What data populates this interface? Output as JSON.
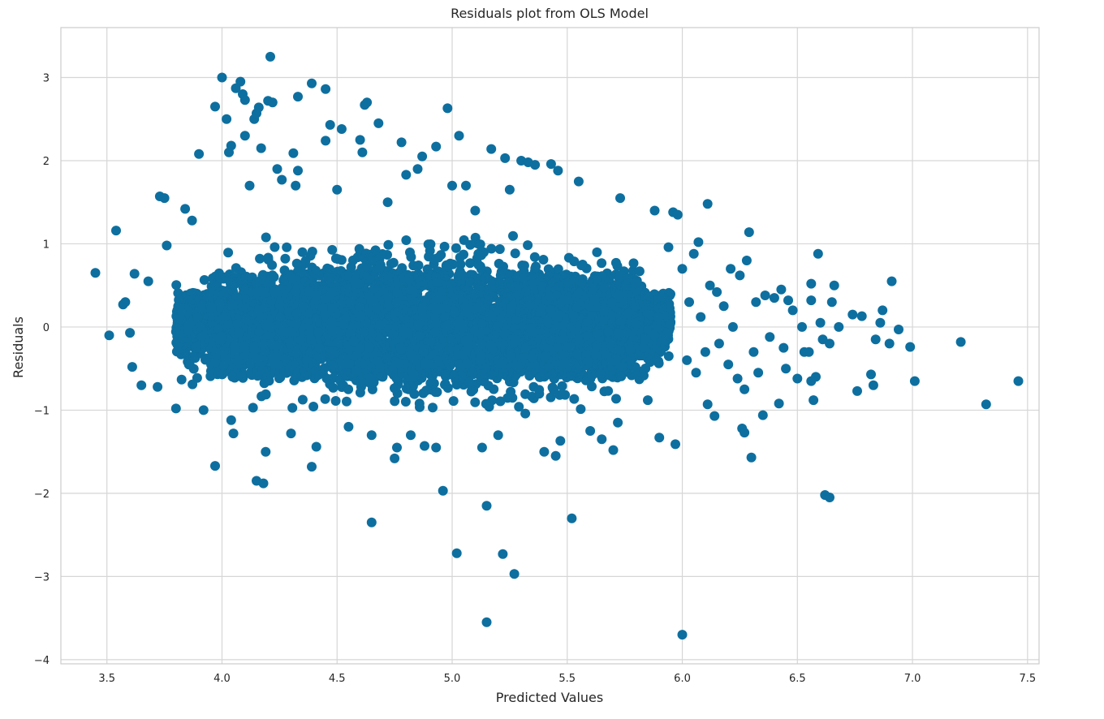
{
  "chart_data": {
    "type": "scatter",
    "title": "Residuals plot from OLS Model",
    "xlabel": "Predicted Values",
    "ylabel": "Residuals",
    "xlim": [
      3.3,
      7.55
    ],
    "ylim": [
      -4.05,
      3.6
    ],
    "xticks": [
      3.5,
      4.0,
      4.5,
      5.0,
      5.5,
      6.0,
      6.5,
      7.0,
      7.5
    ],
    "xtick_labels": [
      "3.5",
      "4.0",
      "4.5",
      "5.0",
      "5.5",
      "6.0",
      "6.5",
      "7.0",
      "7.5"
    ],
    "yticks": [
      -4,
      -3,
      -2,
      -1,
      0,
      1,
      2,
      3
    ],
    "ytick_labels": [
      "−4",
      "−3",
      "−2",
      "−1",
      "0",
      "1",
      "2",
      "3"
    ],
    "grid": true,
    "marker_color": "#0d6f9f",
    "dense_cluster": {
      "description_values": {
        "x_range": [
          3.8,
          5.95
        ],
        "y_range": [
          -0.9,
          0.95
        ]
      }
    },
    "points": [
      {
        "x": 3.45,
        "y": 0.65
      },
      {
        "x": 3.51,
        "y": -0.1
      },
      {
        "x": 3.54,
        "y": 1.16
      },
      {
        "x": 3.57,
        "y": 0.27
      },
      {
        "x": 3.58,
        "y": 0.3
      },
      {
        "x": 3.6,
        "y": -0.07
      },
      {
        "x": 3.61,
        "y": -0.48
      },
      {
        "x": 3.62,
        "y": 0.64
      },
      {
        "x": 3.65,
        "y": -0.7
      },
      {
        "x": 3.68,
        "y": 0.55
      },
      {
        "x": 3.72,
        "y": -0.72
      },
      {
        "x": 3.73,
        "y": 1.57
      },
      {
        "x": 3.75,
        "y": 1.55
      },
      {
        "x": 3.76,
        "y": 0.98
      },
      {
        "x": 3.8,
        "y": -0.98
      },
      {
        "x": 3.84,
        "y": 1.42
      },
      {
        "x": 3.87,
        "y": 1.28
      },
      {
        "x": 3.9,
        "y": 2.08
      },
      {
        "x": 3.92,
        "y": -1.0
      },
      {
        "x": 3.97,
        "y": -1.67
      },
      {
        "x": 3.97,
        "y": 2.65
      },
      {
        "x": 4.0,
        "y": 3.0
      },
      {
        "x": 4.02,
        "y": 2.5
      },
      {
        "x": 4.03,
        "y": 2.1
      },
      {
        "x": 4.04,
        "y": 2.18
      },
      {
        "x": 4.04,
        "y": -1.12
      },
      {
        "x": 4.05,
        "y": -1.28
      },
      {
        "x": 4.06,
        "y": 2.87
      },
      {
        "x": 4.08,
        "y": 2.95
      },
      {
        "x": 4.09,
        "y": 2.8
      },
      {
        "x": 4.1,
        "y": 2.3
      },
      {
        "x": 4.1,
        "y": 2.73
      },
      {
        "x": 4.12,
        "y": 1.7
      },
      {
        "x": 4.14,
        "y": 2.5
      },
      {
        "x": 4.15,
        "y": 2.57
      },
      {
        "x": 4.15,
        "y": -1.85
      },
      {
        "x": 4.16,
        "y": 2.64
      },
      {
        "x": 4.17,
        "y": 2.15
      },
      {
        "x": 4.18,
        "y": -1.88
      },
      {
        "x": 4.19,
        "y": -1.5
      },
      {
        "x": 4.2,
        "y": 2.72
      },
      {
        "x": 4.21,
        "y": 3.25
      },
      {
        "x": 4.22,
        "y": 2.7
      },
      {
        "x": 4.24,
        "y": 1.9
      },
      {
        "x": 4.26,
        "y": 1.77
      },
      {
        "x": 4.3,
        "y": -1.28
      },
      {
        "x": 4.31,
        "y": 2.09
      },
      {
        "x": 4.32,
        "y": 1.7
      },
      {
        "x": 4.33,
        "y": 1.88
      },
      {
        "x": 4.33,
        "y": 2.77
      },
      {
        "x": 4.39,
        "y": -1.68
      },
      {
        "x": 4.39,
        "y": 2.93
      },
      {
        "x": 4.41,
        "y": -1.44
      },
      {
        "x": 4.45,
        "y": 2.86
      },
      {
        "x": 4.45,
        "y": 2.24
      },
      {
        "x": 4.47,
        "y": 2.43
      },
      {
        "x": 4.5,
        "y": 1.65
      },
      {
        "x": 4.52,
        "y": 2.38
      },
      {
        "x": 4.55,
        "y": -1.2
      },
      {
        "x": 4.6,
        "y": 2.25
      },
      {
        "x": 4.61,
        "y": 2.1
      },
      {
        "x": 4.62,
        "y": 2.67
      },
      {
        "x": 4.63,
        "y": 2.7
      },
      {
        "x": 4.65,
        "y": -2.35
      },
      {
        "x": 4.65,
        "y": -1.3
      },
      {
        "x": 4.68,
        "y": 2.45
      },
      {
        "x": 4.72,
        "y": 1.5
      },
      {
        "x": 4.75,
        "y": -1.58
      },
      {
        "x": 4.76,
        "y": -1.45
      },
      {
        "x": 4.78,
        "y": 2.22
      },
      {
        "x": 4.8,
        "y": 1.83
      },
      {
        "x": 4.82,
        "y": -1.3
      },
      {
        "x": 4.85,
        "y": 1.9
      },
      {
        "x": 4.87,
        "y": 2.05
      },
      {
        "x": 4.88,
        "y": -1.43
      },
      {
        "x": 4.93,
        "y": 2.17
      },
      {
        "x": 4.93,
        "y": -1.45
      },
      {
        "x": 4.96,
        "y": -1.97
      },
      {
        "x": 4.98,
        "y": 2.63
      },
      {
        "x": 5.0,
        "y": 1.7
      },
      {
        "x": 5.02,
        "y": -2.72
      },
      {
        "x": 5.03,
        "y": 2.3
      },
      {
        "x": 5.06,
        "y": 1.7
      },
      {
        "x": 5.1,
        "y": 1.4
      },
      {
        "x": 5.13,
        "y": -1.45
      },
      {
        "x": 5.15,
        "y": -2.15
      },
      {
        "x": 5.15,
        "y": -3.55
      },
      {
        "x": 5.17,
        "y": 2.14
      },
      {
        "x": 5.2,
        "y": -1.3
      },
      {
        "x": 5.22,
        "y": -2.73
      },
      {
        "x": 5.23,
        "y": 2.03
      },
      {
        "x": 5.25,
        "y": 1.65
      },
      {
        "x": 5.27,
        "y": -2.97
      },
      {
        "x": 5.3,
        "y": 2.0
      },
      {
        "x": 5.33,
        "y": 1.98
      },
      {
        "x": 5.36,
        "y": 1.95
      },
      {
        "x": 5.4,
        "y": -1.5
      },
      {
        "x": 5.43,
        "y": 1.96
      },
      {
        "x": 5.45,
        "y": -1.55
      },
      {
        "x": 5.46,
        "y": 1.88
      },
      {
        "x": 5.47,
        "y": -1.37
      },
      {
        "x": 5.52,
        "y": -2.3
      },
      {
        "x": 5.55,
        "y": 1.75
      },
      {
        "x": 5.6,
        "y": -1.25
      },
      {
        "x": 5.65,
        "y": -1.35
      },
      {
        "x": 5.7,
        "y": -1.48
      },
      {
        "x": 5.72,
        "y": -1.15
      },
      {
        "x": 5.73,
        "y": 1.55
      },
      {
        "x": 5.85,
        "y": -0.88
      },
      {
        "x": 5.88,
        "y": 1.4
      },
      {
        "x": 5.9,
        "y": -1.33
      },
      {
        "x": 5.94,
        "y": 0.96
      },
      {
        "x": 5.96,
        "y": 1.38
      },
      {
        "x": 5.97,
        "y": -1.41
      },
      {
        "x": 5.98,
        "y": 1.35
      },
      {
        "x": 6.0,
        "y": -3.7
      },
      {
        "x": 6.0,
        "y": 0.7
      },
      {
        "x": 6.02,
        "y": -0.4
      },
      {
        "x": 6.03,
        "y": 0.3
      },
      {
        "x": 6.05,
        "y": 0.88
      },
      {
        "x": 6.06,
        "y": -0.55
      },
      {
        "x": 6.07,
        "y": 1.02
      },
      {
        "x": 6.08,
        "y": 0.12
      },
      {
        "x": 6.1,
        "y": -0.3
      },
      {
        "x": 6.11,
        "y": 1.48
      },
      {
        "x": 6.11,
        "y": -0.93
      },
      {
        "x": 6.12,
        "y": 0.5
      },
      {
        "x": 6.14,
        "y": -1.07
      },
      {
        "x": 6.15,
        "y": 0.42
      },
      {
        "x": 6.16,
        "y": -0.2
      },
      {
        "x": 6.18,
        "y": 0.25
      },
      {
        "x": 6.2,
        "y": -0.45
      },
      {
        "x": 6.21,
        "y": 0.7
      },
      {
        "x": 6.22,
        "y": 0.0
      },
      {
        "x": 6.24,
        "y": -0.62
      },
      {
        "x": 6.25,
        "y": 0.62
      },
      {
        "x": 6.26,
        "y": -1.22
      },
      {
        "x": 6.27,
        "y": -1.27
      },
      {
        "x": 6.27,
        "y": -0.75
      },
      {
        "x": 6.28,
        "y": 0.8
      },
      {
        "x": 6.29,
        "y": 1.14
      },
      {
        "x": 6.3,
        "y": -1.57
      },
      {
        "x": 6.31,
        "y": -0.3
      },
      {
        "x": 6.32,
        "y": 0.3
      },
      {
        "x": 6.33,
        "y": -0.55
      },
      {
        "x": 6.35,
        "y": -1.06
      },
      {
        "x": 6.36,
        "y": 0.38
      },
      {
        "x": 6.38,
        "y": -0.12
      },
      {
        "x": 6.4,
        "y": 0.35
      },
      {
        "x": 6.42,
        "y": -0.92
      },
      {
        "x": 6.43,
        "y": 0.45
      },
      {
        "x": 6.44,
        "y": -0.25
      },
      {
        "x": 6.45,
        "y": -0.5
      },
      {
        "x": 6.46,
        "y": 0.32
      },
      {
        "x": 6.48,
        "y": 0.2
      },
      {
        "x": 6.5,
        "y": -0.62
      },
      {
        "x": 6.52,
        "y": 0.0
      },
      {
        "x": 6.53,
        "y": -0.3
      },
      {
        "x": 6.55,
        "y": -0.3
      },
      {
        "x": 6.56,
        "y": 0.52
      },
      {
        "x": 6.56,
        "y": 0.32
      },
      {
        "x": 6.56,
        "y": -0.65
      },
      {
        "x": 6.57,
        "y": -0.88
      },
      {
        "x": 6.58,
        "y": -0.6
      },
      {
        "x": 6.59,
        "y": 0.88
      },
      {
        "x": 6.6,
        "y": 0.05
      },
      {
        "x": 6.61,
        "y": -0.15
      },
      {
        "x": 6.62,
        "y": -2.02
      },
      {
        "x": 6.64,
        "y": -2.05
      },
      {
        "x": 6.64,
        "y": -0.2
      },
      {
        "x": 6.65,
        "y": 0.3
      },
      {
        "x": 6.66,
        "y": 0.5
      },
      {
        "x": 6.68,
        "y": 0.0
      },
      {
        "x": 6.74,
        "y": 0.15
      },
      {
        "x": 6.76,
        "y": -0.77
      },
      {
        "x": 6.78,
        "y": 0.13
      },
      {
        "x": 6.82,
        "y": -0.57
      },
      {
        "x": 6.83,
        "y": -0.7
      },
      {
        "x": 6.84,
        "y": -0.15
      },
      {
        "x": 6.86,
        "y": 0.05
      },
      {
        "x": 6.87,
        "y": 0.2
      },
      {
        "x": 6.9,
        "y": -0.2
      },
      {
        "x": 6.91,
        "y": 0.55
      },
      {
        "x": 6.94,
        "y": -0.03
      },
      {
        "x": 6.99,
        "y": -0.24
      },
      {
        "x": 7.01,
        "y": -0.65
      },
      {
        "x": 7.21,
        "y": -0.18
      },
      {
        "x": 7.32,
        "y": -0.93
      },
      {
        "x": 7.46,
        "y": -0.65
      }
    ]
  }
}
